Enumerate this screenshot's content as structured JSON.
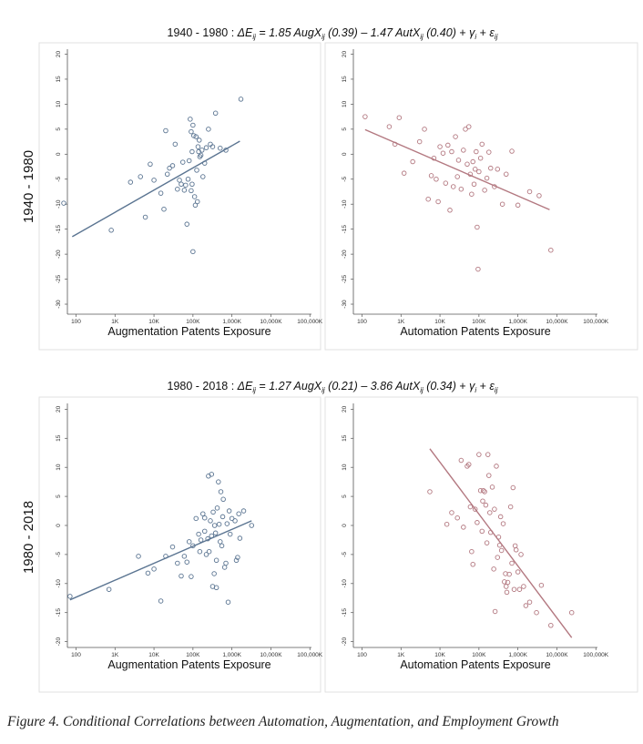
{
  "row_labels": [
    "1940 - 1980",
    "1980 - 2018"
  ],
  "equations": [
    {
      "period": "1940 - 1980 :",
      "lhs": "ΔE",
      "lhs_sub": "ij",
      "eq": " = ",
      "b1": "1.85 AugX",
      "b1_sub": "ij",
      "b1_se": " (0.39)",
      "op": " – ",
      "b2": "1.47 AutX",
      "b2_sub": "ij",
      "b2_se": " (0.40)",
      "plus1": " +  ",
      "g": "γ",
      "g_sub": "i",
      "plus2": " + ",
      "e": "ε",
      "e_sub": "ij"
    },
    {
      "period": "1980 - 2018 :",
      "lhs": "ΔE",
      "lhs_sub": "ij",
      "eq": " = ",
      "b1": "1.27 AugX",
      "b1_sub": "ij",
      "b1_se": " (0.21)",
      "op": " – ",
      "b2": "3.86 AutX",
      "b2_sub": "ij",
      "b2_se": " (0.34)",
      "plus1": " +  ",
      "g": "γ",
      "g_sub": "i",
      "plus2": " + ",
      "e": "ε",
      "e_sub": "ij"
    }
  ],
  "caption": "Figure 4. Conditional Correlations between Automation, Augmentation, and Employment Growth",
  "chart_data": [
    {
      "type": "scatter",
      "period": "1940 - 1980",
      "xlabel": "Augmentation Patents Exposure",
      "ylabel": "",
      "x_scale": "log",
      "x_ticks": [
        100,
        1000,
        10000,
        100000,
        1000000,
        10000000,
        100000000
      ],
      "x_tick_labels": [
        "100",
        "1K",
        "10K",
        "100K",
        "1,000K",
        "10,000K",
        "100,000K"
      ],
      "xlim": [
        60,
        110000000
      ],
      "ylim": [
        -32,
        21
      ],
      "y_ticks": [
        -30,
        -25,
        -20,
        -15,
        -10,
        -5,
        0,
        5,
        10,
        15,
        20
      ],
      "y_tick_labels": [
        "-30",
        "-25",
        "-20",
        "-15",
        "-10",
        "-5",
        "0",
        "5",
        "10",
        "15",
        "20"
      ],
      "color": "#5a7491",
      "fit": {
        "x": [
          80,
          1600000
        ],
        "y": [
          -16.5,
          2.6
        ]
      },
      "points": [
        [
          35,
          -9.8
        ],
        [
          800,
          -15.2
        ],
        [
          2500,
          -5.6
        ],
        [
          4500,
          -4.5
        ],
        [
          6000,
          -12.6
        ],
        [
          8000,
          -2
        ],
        [
          10000,
          -5.2
        ],
        [
          15000,
          -7.8
        ],
        [
          18000,
          -11
        ],
        [
          20000,
          4.7
        ],
        [
          22000,
          -4
        ],
        [
          25000,
          -2.8
        ],
        [
          30000,
          -2.3
        ],
        [
          35000,
          2
        ],
        [
          40000,
          -7
        ],
        [
          45000,
          -5.2
        ],
        [
          50000,
          -6
        ],
        [
          55000,
          -1.6
        ],
        [
          60000,
          -7.2
        ],
        [
          65000,
          -6.2
        ],
        [
          70000,
          -14
        ],
        [
          75000,
          -5
        ],
        [
          80000,
          -1.3
        ],
        [
          85000,
          7
        ],
        [
          90000,
          4.5
        ],
        [
          95000,
          -6
        ],
        [
          100000,
          5.8
        ],
        [
          100000,
          -19.5
        ],
        [
          110000,
          -8.5
        ],
        [
          115000,
          -10.2
        ],
        [
          120000,
          3.5
        ],
        [
          130000,
          -9.5
        ],
        [
          135000,
          1.5
        ],
        [
          140000,
          0.5
        ],
        [
          150000,
          -0.5
        ],
        [
          160000,
          -0.2
        ],
        [
          170000,
          0.8
        ],
        [
          180000,
          -4.5
        ],
        [
          200000,
          -1.8
        ],
        [
          220000,
          1.3
        ],
        [
          250000,
          5
        ],
        [
          280000,
          2
        ],
        [
          320000,
          1.5
        ],
        [
          380000,
          8.2
        ],
        [
          500000,
          1.2
        ],
        [
          700000,
          0.8
        ],
        [
          1700000,
          11
        ],
        [
          90000,
          -7.3
        ],
        [
          105000,
          3.7
        ],
        [
          125000,
          -3.2
        ],
        [
          145000,
          2.8
        ],
        [
          95000,
          0.5
        ]
      ]
    },
    {
      "type": "scatter",
      "period": "1940 - 1980",
      "xlabel": "Automation Patents Exposure",
      "ylabel": "",
      "x_scale": "log",
      "x_ticks": [
        100,
        1000,
        10000,
        100000,
        1000000,
        10000000,
        100000000
      ],
      "x_tick_labels": [
        "100",
        "1K",
        "10K",
        "100K",
        "1,000K",
        "10,000K",
        "100,000K"
      ],
      "xlim": [
        60,
        110000000
      ],
      "ylim": [
        -32,
        21
      ],
      "y_ticks": [
        -30,
        -25,
        -20,
        -15,
        -10,
        -5,
        0,
        5,
        10,
        15,
        20
      ],
      "y_tick_labels": [
        "-30",
        "-25",
        "-20",
        "-15",
        "-10",
        "-5",
        "0",
        "5",
        "10",
        "15",
        "20"
      ],
      "color": "#b37880",
      "fit": {
        "x": [
          120,
          6500000
        ],
        "y": [
          4.9,
          -11.1
        ]
      },
      "points": [
        [
          120,
          7.5
        ],
        [
          500,
          5.5
        ],
        [
          700,
          2
        ],
        [
          900,
          7.3
        ],
        [
          1200,
          -3.8
        ],
        [
          2000,
          -1.5
        ],
        [
          3000,
          2.5
        ],
        [
          4000,
          5
        ],
        [
          5000,
          -9
        ],
        [
          6000,
          -4.3
        ],
        [
          7000,
          -0.8
        ],
        [
          8000,
          -5
        ],
        [
          9000,
          -9.5
        ],
        [
          10000,
          1.5
        ],
        [
          12000,
          0.2
        ],
        [
          14000,
          -5.8
        ],
        [
          16000,
          1.8
        ],
        [
          18000,
          -11.2
        ],
        [
          20000,
          0.5
        ],
        [
          22000,
          -6.5
        ],
        [
          25000,
          3.5
        ],
        [
          28000,
          -4.5
        ],
        [
          30000,
          -1.2
        ],
        [
          35000,
          -7
        ],
        [
          40000,
          0.8
        ],
        [
          45000,
          5
        ],
        [
          50000,
          -2
        ],
        [
          55000,
          5.5
        ],
        [
          60000,
          -4
        ],
        [
          65000,
          -8
        ],
        [
          70000,
          -1.5
        ],
        [
          75000,
          -6
        ],
        [
          80000,
          -3
        ],
        [
          85000,
          0.5
        ],
        [
          90000,
          -14.6
        ],
        [
          95000,
          -23
        ],
        [
          100000,
          -3.5
        ],
        [
          110000,
          -0.8
        ],
        [
          120000,
          2
        ],
        [
          140000,
          -7.2
        ],
        [
          160000,
          -4.8
        ],
        [
          180000,
          0.4
        ],
        [
          200000,
          -2.8
        ],
        [
          250000,
          -6.5
        ],
        [
          300000,
          -3
        ],
        [
          400000,
          -10
        ],
        [
          500000,
          -4
        ],
        [
          700000,
          0.6
        ],
        [
          1000000,
          -10.2
        ],
        [
          2000000,
          -7.5
        ],
        [
          3500000,
          -8.3
        ],
        [
          7000000,
          -19.2
        ]
      ]
    },
    {
      "type": "scatter",
      "period": "1980 - 2018",
      "xlabel": "Augmentation Patents Exposure",
      "ylabel": "",
      "x_scale": "log",
      "x_ticks": [
        100,
        1000,
        10000,
        100000,
        1000000,
        10000000,
        100000000
      ],
      "x_tick_labels": [
        "100",
        "1K",
        "10K",
        "100K",
        "1,000K",
        "10,000K",
        "100,000K"
      ],
      "xlim": [
        60,
        110000000
      ],
      "ylim": [
        -21,
        21
      ],
      "y_ticks": [
        -20,
        -15,
        -10,
        -5,
        0,
        5,
        10,
        15,
        20
      ],
      "y_tick_labels": [
        "-20",
        "-15",
        "-10",
        "-5",
        "0",
        "5",
        "10",
        "15",
        "20"
      ],
      "color": "#5a7491",
      "fit": {
        "x": [
          70,
          3200000
        ],
        "y": [
          -12.8,
          0.8
        ]
      },
      "points": [
        [
          70,
          -12.2
        ],
        [
          700,
          -11
        ],
        [
          4000,
          -5.3
        ],
        [
          7000,
          -8.2
        ],
        [
          10000,
          -7.5
        ],
        [
          15000,
          -13
        ],
        [
          20000,
          -5.3
        ],
        [
          30000,
          -3.7
        ],
        [
          40000,
          -6.5
        ],
        [
          50000,
          -8.7
        ],
        [
          60000,
          -5.3
        ],
        [
          70000,
          -6.3
        ],
        [
          80000,
          -2.8
        ],
        [
          90000,
          -8.8
        ],
        [
          100000,
          -3.5
        ],
        [
          120000,
          1.2
        ],
        [
          140000,
          -1.5
        ],
        [
          150000,
          -4.5
        ],
        [
          160000,
          -2.5
        ],
        [
          180000,
          2
        ],
        [
          200000,
          -1
        ],
        [
          200000,
          1.3
        ],
        [
          220000,
          -5
        ],
        [
          240000,
          -2.3
        ],
        [
          250000,
          8.5
        ],
        [
          260000,
          -4.5
        ],
        [
          280000,
          0.8
        ],
        [
          300000,
          -1.8
        ],
        [
          300000,
          8.8
        ],
        [
          320000,
          -10.5
        ],
        [
          330000,
          2.3
        ],
        [
          350000,
          -8.3
        ],
        [
          360000,
          0
        ],
        [
          380000,
          -1.3
        ],
        [
          400000,
          -6
        ],
        [
          400000,
          -10.7
        ],
        [
          420000,
          3
        ],
        [
          450000,
          7.5
        ],
        [
          470000,
          0.2
        ],
        [
          500000,
          -2.8
        ],
        [
          520000,
          5.8
        ],
        [
          550000,
          -3.5
        ],
        [
          580000,
          1.5
        ],
        [
          600000,
          4.5
        ],
        [
          650000,
          -7.2
        ],
        [
          700000,
          -6.5
        ],
        [
          750000,
          0.3
        ],
        [
          800000,
          -13.2
        ],
        [
          850000,
          2.5
        ],
        [
          900000,
          -1.5
        ],
        [
          1000000,
          1.2
        ],
        [
          1200000,
          0.8
        ],
        [
          1300000,
          -6
        ],
        [
          1400000,
          -5.5
        ],
        [
          1500000,
          2
        ],
        [
          1600000,
          -2.2
        ],
        [
          2000000,
          2.5
        ],
        [
          3200000,
          0
        ]
      ]
    },
    {
      "type": "scatter",
      "period": "1980 - 2018",
      "xlabel": "Automation Patents Exposure",
      "ylabel": "",
      "x_scale": "log",
      "x_ticks": [
        100,
        1000,
        10000,
        100000,
        1000000,
        10000000,
        100000000
      ],
      "x_tick_labels": [
        "100",
        "1K",
        "10K",
        "100K",
        "1,000K",
        "10,000K",
        "100,000K"
      ],
      "xlim": [
        60,
        110000000
      ],
      "ylim": [
        -21,
        21
      ],
      "y_ticks": [
        -20,
        -15,
        -10,
        -5,
        0,
        5,
        10,
        15,
        20
      ],
      "y_tick_labels": [
        "-20",
        "-15",
        "-10",
        "-5",
        "0",
        "5",
        "10",
        "15",
        "20"
      ],
      "color": "#b37880",
      "fit": {
        "x": [
          5500,
          24000000
        ],
        "y": [
          13.2,
          -19.3
        ]
      },
      "points": [
        [
          5500,
          5.8
        ],
        [
          15000,
          0.2
        ],
        [
          20000,
          2.2
        ],
        [
          28000,
          1.3
        ],
        [
          35000,
          11.2
        ],
        [
          40000,
          -0.3
        ],
        [
          50000,
          10.2
        ],
        [
          55000,
          10.5
        ],
        [
          60000,
          3.2
        ],
        [
          65000,
          -4.5
        ],
        [
          70000,
          -6.7
        ],
        [
          80000,
          2.8
        ],
        [
          90000,
          0.5
        ],
        [
          100000,
          12.2
        ],
        [
          110000,
          6
        ],
        [
          120000,
          -1
        ],
        [
          125000,
          4.2
        ],
        [
          130000,
          6
        ],
        [
          140000,
          5.8
        ],
        [
          150000,
          3.5
        ],
        [
          160000,
          -3
        ],
        [
          170000,
          12.2
        ],
        [
          180000,
          8.6
        ],
        [
          190000,
          2.2
        ],
        [
          200000,
          -1.2
        ],
        [
          220000,
          6.6
        ],
        [
          240000,
          -7.5
        ],
        [
          250000,
          2.8
        ],
        [
          260000,
          -14.8
        ],
        [
          280000,
          10.2
        ],
        [
          300000,
          -5.5
        ],
        [
          320000,
          -2
        ],
        [
          340000,
          -3.4
        ],
        [
          360000,
          1.5
        ],
        [
          380000,
          -4.3
        ],
        [
          420000,
          0.3
        ],
        [
          450000,
          -9.7
        ],
        [
          480000,
          -8.3
        ],
        [
          500000,
          -10.5
        ],
        [
          520000,
          -11.5
        ],
        [
          550000,
          -9.8
        ],
        [
          600000,
          -8.4
        ],
        [
          650000,
          3.2
        ],
        [
          700000,
          -6.5
        ],
        [
          750000,
          6.5
        ],
        [
          800000,
          -11
        ],
        [
          850000,
          -3.5
        ],
        [
          900000,
          -4.2
        ],
        [
          1000000,
          -8
        ],
        [
          1100000,
          -11
        ],
        [
          1200000,
          -5
        ],
        [
          1400000,
          -10.5
        ],
        [
          1600000,
          -13.8
        ],
        [
          2000000,
          -13.2
        ],
        [
          3000000,
          -15
        ],
        [
          4000000,
          -10.3
        ],
        [
          7000000,
          -17.2
        ],
        [
          24000000,
          -15
        ]
      ]
    }
  ]
}
